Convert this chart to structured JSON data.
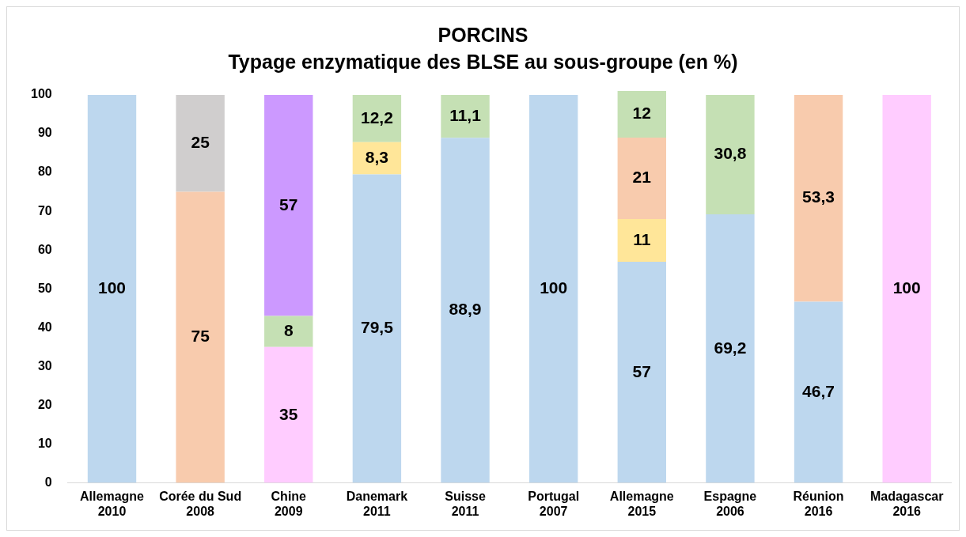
{
  "chart_data": {
    "type": "bar",
    "stacked": true,
    "title": "PORCINS",
    "subtitle": "Typage enzymatique des BLSE au sous-groupe (en %)",
    "categories": [
      "Allemagne 2010",
      "Corée du Sud 2008",
      "Chine 2009",
      "Danemark 2011",
      "Suisse 2011",
      "Portugal 2007",
      "Allemagne 2015",
      "Espagne 2006",
      "Réunion 2016",
      "Madagascar 2016"
    ],
    "ylim": [
      0,
      101
    ],
    "yticks": [
      0,
      10,
      20,
      30,
      40,
      50,
      60,
      70,
      80,
      90,
      100
    ],
    "grid": false,
    "legend": false,
    "series": [
      {
        "color": "#bdd7ee",
        "values": [
          100,
          null,
          null,
          79.5,
          88.9,
          100,
          57,
          69.2,
          46.7,
          null
        ],
        "value_labels": [
          "100",
          null,
          null,
          "79,5",
          "88,9",
          "100",
          "57",
          "69,2",
          "46,7",
          null
        ]
      },
      {
        "color": "#ffccff",
        "values": [
          null,
          null,
          35,
          null,
          null,
          null,
          null,
          null,
          null,
          100
        ],
        "value_labels": [
          null,
          null,
          "35",
          null,
          null,
          null,
          null,
          null,
          null,
          "100"
        ]
      },
      {
        "color": "#ffe699",
        "values": [
          null,
          null,
          null,
          8.3,
          null,
          null,
          11,
          null,
          null,
          null
        ],
        "value_labels": [
          null,
          null,
          null,
          "8,3",
          null,
          null,
          "11",
          null,
          null,
          null
        ]
      },
      {
        "color": "#f8cbad",
        "values": [
          null,
          75,
          null,
          null,
          null,
          null,
          21,
          null,
          53.3,
          null
        ],
        "value_labels": [
          null,
          "75",
          null,
          null,
          null,
          null,
          "21",
          null,
          "53,3",
          null
        ]
      },
      {
        "color": "#c5e0b4",
        "values": [
          null,
          null,
          8,
          12.2,
          11.1,
          null,
          12,
          30.8,
          null,
          null
        ],
        "value_labels": [
          null,
          null,
          "8",
          "12,2",
          "11,1",
          null,
          "12",
          "30,8",
          null,
          null
        ]
      },
      {
        "color": "#d0cece",
        "values": [
          null,
          25,
          null,
          null,
          null,
          null,
          null,
          null,
          null,
          null
        ],
        "value_labels": [
          null,
          "25",
          null,
          null,
          null,
          null,
          null,
          null,
          null,
          null
        ]
      },
      {
        "color": "#cc99ff",
        "values": [
          null,
          null,
          57,
          null,
          null,
          null,
          null,
          null,
          null,
          null
        ],
        "value_labels": [
          null,
          null,
          "57",
          null,
          null,
          null,
          null,
          null,
          null,
          null
        ]
      }
    ]
  }
}
